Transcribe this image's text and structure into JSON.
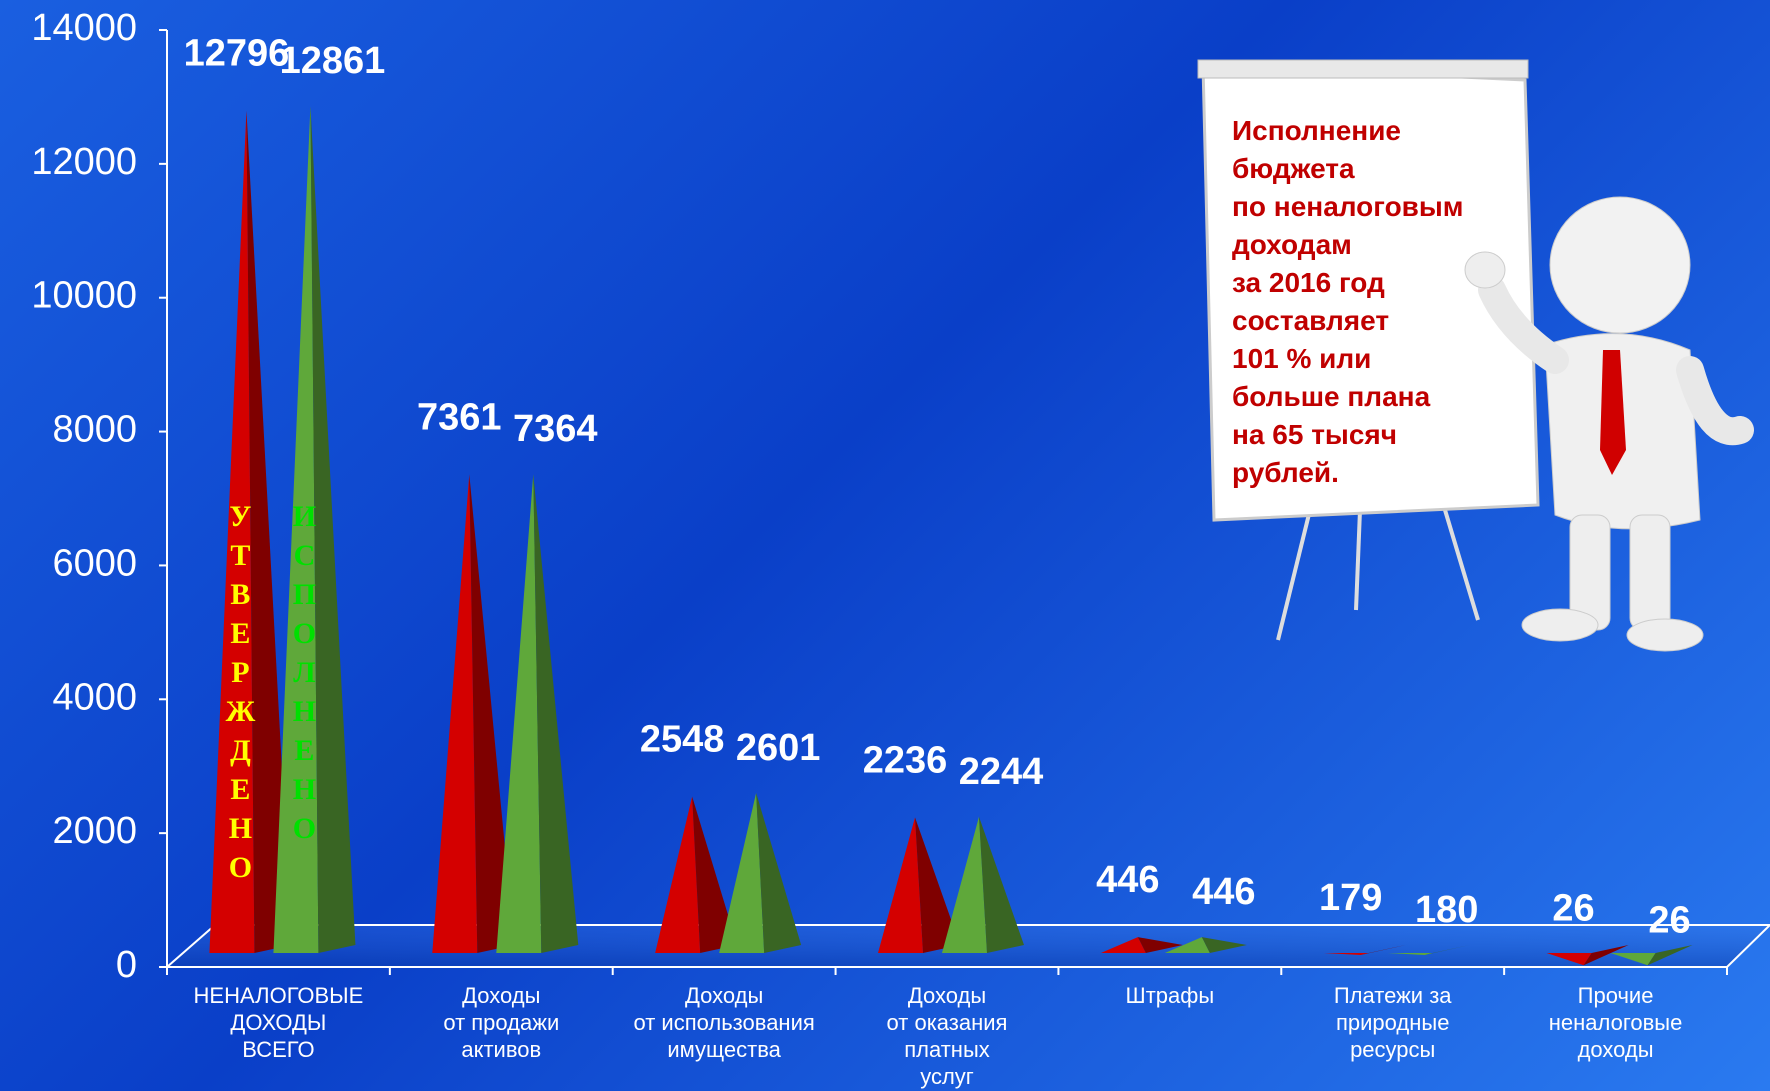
{
  "chart_data": {
    "type": "pyramid",
    "categories": [
      "НЕНАЛОГОВЫЕ\nДОХОДЫ\nВСЕГО",
      "Доходы\nот продажи\nактивов",
      "Доходы\nот использования\nимущества",
      "Доходы\nот оказания\nплатных\nуслуг",
      "Штрафы",
      "Платежи за\nприродные\nресурсы",
      "Прочие\nненалоговые\nдоходы"
    ],
    "series": [
      {
        "name": "УТВЕРЖДЕНО",
        "color": "#d40000",
        "values": [
          12796,
          7361,
          2548,
          2236,
          446,
          179,
          26
        ]
      },
      {
        "name": "ИСПОЛНЕНО",
        "color": "#5fa83a",
        "values": [
          12861,
          7364,
          2601,
          2244,
          446,
          180,
          26
        ]
      }
    ],
    "ylim": [
      0,
      14000
    ],
    "yticks": [
      0,
      2000,
      4000,
      6000,
      8000,
      10000,
      12000,
      14000
    ],
    "note": [
      "Исполнение",
      "бюджета",
      "по неналоговым",
      "доходам",
      "за 2016 год",
      "составляет",
      "101 % или",
      "больше плана",
      "на 65 тысяч",
      "рублей."
    ]
  }
}
